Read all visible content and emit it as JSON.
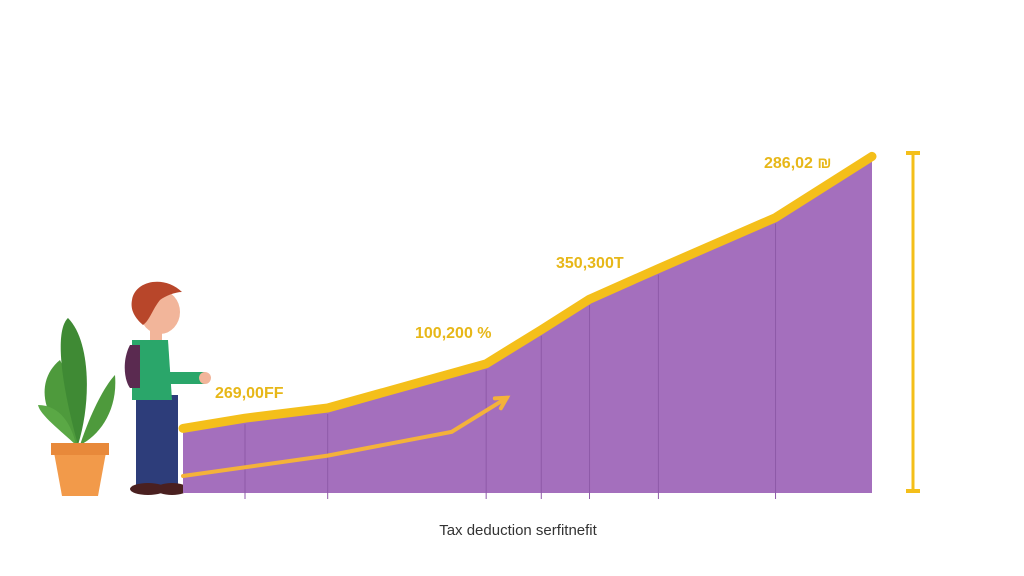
{
  "chart_data": {
    "type": "area",
    "xlabel": "Tax deduction serfitnefit",
    "xlim": [
      0,
      100
    ],
    "ylim": [
      0,
      100
    ],
    "series": [
      {
        "color": "#f4bf1a",
        "fill": "#a46fbd",
        "x": [
          0,
          9,
          21,
          44,
          52,
          59,
          69,
          86,
          100
        ],
        "values": [
          19,
          22,
          25,
          38,
          48,
          57,
          66,
          81,
          99
        ]
      },
      {
        "color": "#f4b23a",
        "x": [
          0,
          21,
          39,
          47
        ],
        "values": [
          5,
          11,
          18,
          28
        ]
      }
    ],
    "annotations": [
      "269,00FF",
      "100,200 %",
      "350,300T",
      "286,02 ₪"
    ]
  }
}
